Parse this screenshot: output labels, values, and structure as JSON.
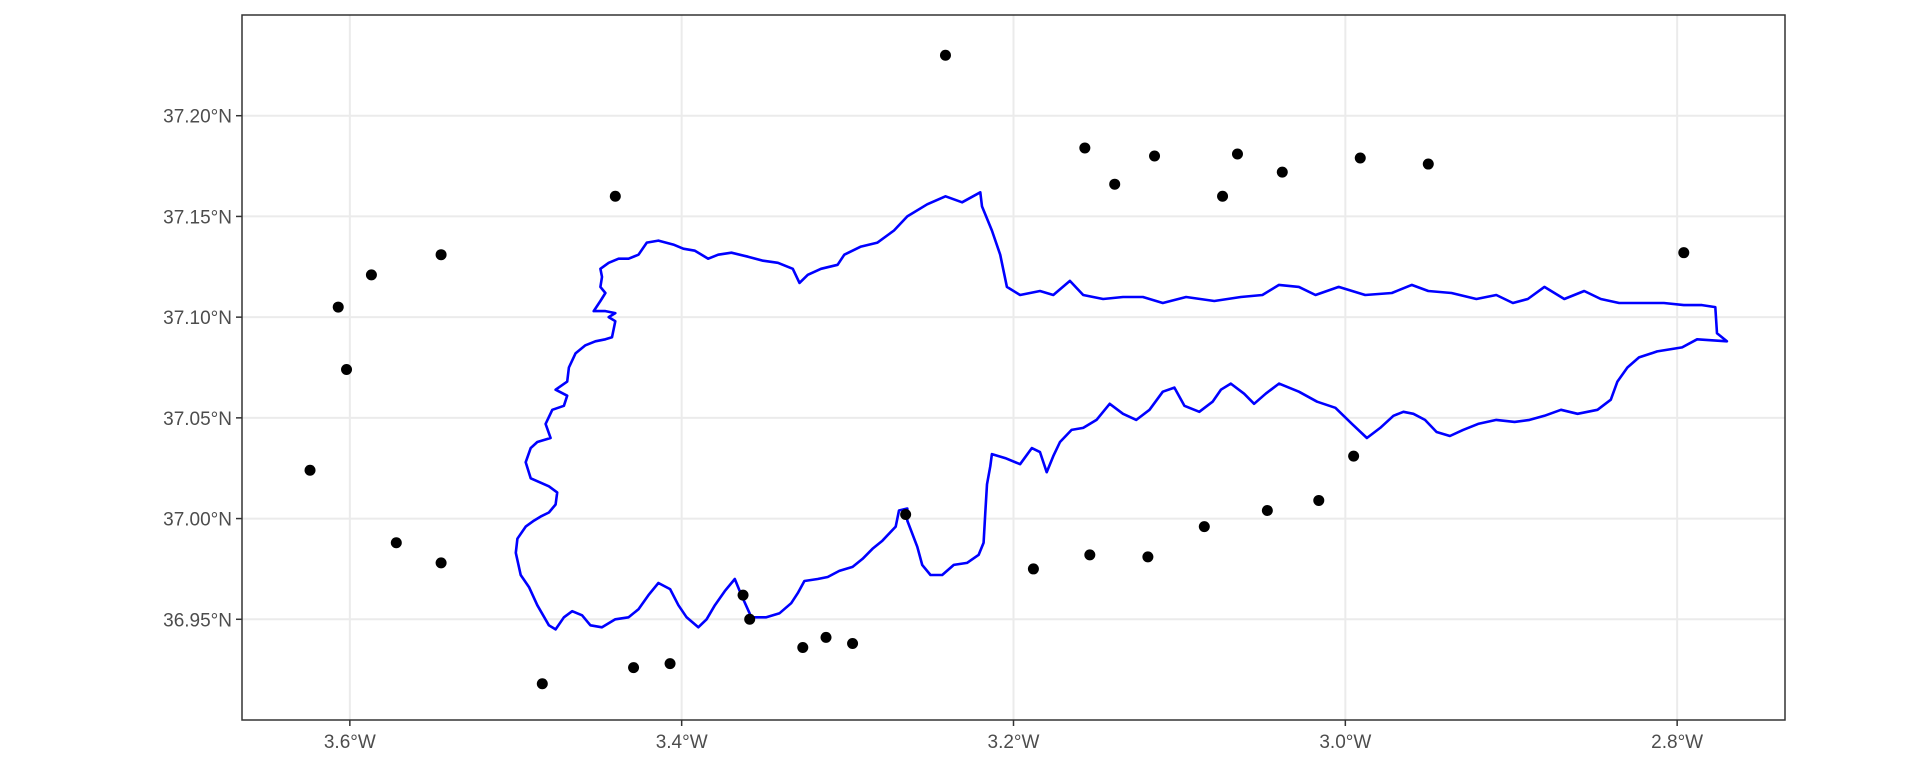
{
  "chart_data": {
    "type": "scatter",
    "title": "",
    "xlabel": "",
    "ylabel": "",
    "xlim": [
      -3.665,
      -2.735
    ],
    "ylim": [
      36.9,
      37.25
    ],
    "x_ticks": [
      {
        "value": -3.6,
        "label": "3.6°W"
      },
      {
        "value": -3.4,
        "label": "3.4°W"
      },
      {
        "value": -3.2,
        "label": "3.2°W"
      },
      {
        "value": -3.0,
        "label": "3.0°W"
      },
      {
        "value": -2.8,
        "label": "2.8°W"
      }
    ],
    "y_ticks": [
      {
        "value": 36.95,
        "label": "36.95°N"
      },
      {
        "value": 37.0,
        "label": "37.00°N"
      },
      {
        "value": 37.05,
        "label": "37.05°N"
      },
      {
        "value": 37.1,
        "label": "37.10°N"
      },
      {
        "value": 37.15,
        "label": "37.15°N"
      },
      {
        "value": 37.2,
        "label": "37.20°N"
      }
    ],
    "grid": true,
    "colors": {
      "polygon": "#0000ff",
      "points": "#000000",
      "grid": "#ebebeb",
      "panel": "#ffffff"
    },
    "points": [
      {
        "x": -3.624,
        "y": 37.024
      },
      {
        "x": -3.607,
        "y": 37.105
      },
      {
        "x": -3.602,
        "y": 37.074
      },
      {
        "x": -3.587,
        "y": 37.121
      },
      {
        "x": -3.572,
        "y": 36.988
      },
      {
        "x": -3.545,
        "y": 37.131
      },
      {
        "x": -3.545,
        "y": 36.978
      },
      {
        "x": -3.484,
        "y": 36.918
      },
      {
        "x": -3.44,
        "y": 37.16
      },
      {
        "x": -3.429,
        "y": 36.926
      },
      {
        "x": -3.407,
        "y": 36.928
      },
      {
        "x": -3.363,
        "y": 36.962
      },
      {
        "x": -3.359,
        "y": 36.95
      },
      {
        "x": -3.327,
        "y": 36.936
      },
      {
        "x": -3.313,
        "y": 36.941
      },
      {
        "x": -3.297,
        "y": 36.938
      },
      {
        "x": -3.265,
        "y": 37.002
      },
      {
        "x": -3.241,
        "y": 37.23
      },
      {
        "x": -3.188,
        "y": 36.975
      },
      {
        "x": -3.157,
        "y": 37.184
      },
      {
        "x": -3.154,
        "y": 36.982
      },
      {
        "x": -3.139,
        "y": 37.166
      },
      {
        "x": -3.119,
        "y": 36.981
      },
      {
        "x": -3.115,
        "y": 37.18
      },
      {
        "x": -3.085,
        "y": 36.996
      },
      {
        "x": -3.074,
        "y": 37.16
      },
      {
        "x": -3.065,
        "y": 37.181
      },
      {
        "x": -3.047,
        "y": 37.004
      },
      {
        "x": -3.038,
        "y": 37.172
      },
      {
        "x": -3.016,
        "y": 37.009
      },
      {
        "x": -2.995,
        "y": 37.031
      },
      {
        "x": -2.991,
        "y": 37.179
      },
      {
        "x": -2.95,
        "y": 37.176
      },
      {
        "x": -2.796,
        "y": 37.132
      }
    ],
    "boundary": [
      [
        -3.426,
        37.131
      ],
      [
        -3.421,
        37.137
      ],
      [
        -3.414,
        37.138
      ],
      [
        -3.405,
        37.136
      ],
      [
        -3.399,
        37.134
      ],
      [
        -3.392,
        37.133
      ],
      [
        -3.384,
        37.129
      ],
      [
        -3.378,
        37.131
      ],
      [
        -3.37,
        37.132
      ],
      [
        -3.36,
        37.13
      ],
      [
        -3.351,
        37.128
      ],
      [
        -3.342,
        37.127
      ],
      [
        -3.333,
        37.124
      ],
      [
        -3.329,
        37.117
      ],
      [
        -3.324,
        37.121
      ],
      [
        -3.316,
        37.124
      ],
      [
        -3.306,
        37.126
      ],
      [
        -3.302,
        37.131
      ],
      [
        -3.292,
        37.135
      ],
      [
        -3.282,
        37.137
      ],
      [
        -3.272,
        37.143
      ],
      [
        -3.264,
        37.15
      ],
      [
        -3.252,
        37.156
      ],
      [
        -3.241,
        37.16
      ],
      [
        -3.231,
        37.157
      ],
      [
        -3.22,
        37.162
      ],
      [
        -3.219,
        37.155
      ],
      [
        -3.213,
        37.143
      ],
      [
        -3.208,
        37.131
      ],
      [
        -3.204,
        37.115
      ],
      [
        -3.196,
        37.111
      ],
      [
        -3.184,
        37.113
      ],
      [
        -3.176,
        37.111
      ],
      [
        -3.166,
        37.118
      ],
      [
        -3.158,
        37.111
      ],
      [
        -3.146,
        37.109
      ],
      [
        -3.134,
        37.11
      ],
      [
        -3.122,
        37.11
      ],
      [
        -3.11,
        37.107
      ],
      [
        -3.096,
        37.11
      ],
      [
        -3.079,
        37.108
      ],
      [
        -3.063,
        37.11
      ],
      [
        -3.05,
        37.111
      ],
      [
        -3.04,
        37.116
      ],
      [
        -3.028,
        37.115
      ],
      [
        -3.018,
        37.111
      ],
      [
        -3.004,
        37.115
      ],
      [
        -2.988,
        37.111
      ],
      [
        -2.972,
        37.112
      ],
      [
        -2.96,
        37.116
      ],
      [
        -2.95,
        37.113
      ],
      [
        -2.936,
        37.112
      ],
      [
        -2.921,
        37.109
      ],
      [
        -2.909,
        37.111
      ],
      [
        -2.899,
        37.107
      ],
      [
        -2.89,
        37.109
      ],
      [
        -2.88,
        37.115
      ],
      [
        -2.868,
        37.109
      ],
      [
        -2.856,
        37.113
      ],
      [
        -2.846,
        37.109
      ],
      [
        -2.835,
        37.107
      ],
      [
        -2.822,
        37.107
      ],
      [
        -2.808,
        37.107
      ],
      [
        -2.796,
        37.106
      ],
      [
        -2.785,
        37.106
      ],
      [
        -2.777,
        37.105
      ],
      [
        -2.776,
        37.092
      ],
      [
        -2.77,
        37.088
      ],
      [
        -2.788,
        37.089
      ],
      [
        -2.797,
        37.085
      ],
      [
        -2.812,
        37.083
      ],
      [
        -2.823,
        37.08
      ],
      [
        -2.83,
        37.075
      ],
      [
        -2.836,
        37.068
      ],
      [
        -2.84,
        37.059
      ],
      [
        -2.848,
        37.054
      ],
      [
        -2.86,
        37.052
      ],
      [
        -2.87,
        37.054
      ],
      [
        -2.88,
        37.051
      ],
      [
        -2.889,
        37.049
      ],
      [
        -2.898,
        37.048
      ],
      [
        -2.909,
        37.049
      ],
      [
        -2.92,
        37.047
      ],
      [
        -2.929,
        37.044
      ],
      [
        -2.937,
        37.041
      ],
      [
        -2.945,
        37.043
      ],
      [
        -2.952,
        37.049
      ],
      [
        -2.959,
        37.052
      ],
      [
        -2.965,
        37.053
      ],
      [
        -2.971,
        37.051
      ],
      [
        -2.979,
        37.045
      ],
      [
        -2.987,
        37.04
      ],
      [
        -2.996,
        37.047
      ],
      [
        -3.006,
        37.055
      ],
      [
        -3.017,
        37.058
      ],
      [
        -3.028,
        37.063
      ],
      [
        -3.04,
        37.067
      ],
      [
        -3.048,
        37.062
      ],
      [
        -3.055,
        37.057
      ],
      [
        -3.061,
        37.062
      ],
      [
        -3.069,
        37.067
      ],
      [
        -3.075,
        37.064
      ],
      [
        -3.08,
        37.058
      ],
      [
        -3.088,
        37.053
      ],
      [
        -3.097,
        37.056
      ],
      [
        -3.103,
        37.065
      ],
      [
        -3.11,
        37.063
      ],
      [
        -3.118,
        37.054
      ],
      [
        -3.126,
        37.049
      ],
      [
        -3.134,
        37.052
      ],
      [
        -3.142,
        37.057
      ],
      [
        -3.15,
        37.049
      ],
      [
        -3.158,
        37.045
      ],
      [
        -3.165,
        37.044
      ],
      [
        -3.172,
        37.038
      ],
      [
        -3.176,
        37.031
      ],
      [
        -3.18,
        37.023
      ],
      [
        -3.184,
        37.033
      ],
      [
        -3.189,
        37.035
      ],
      [
        -3.196,
        37.027
      ],
      [
        -3.205,
        37.03
      ],
      [
        -3.213,
        37.032
      ],
      [
        -3.214,
        37.026
      ],
      [
        -3.216,
        37.017
      ],
      [
        -3.217,
        37.003
      ],
      [
        -3.218,
        36.988
      ],
      [
        -3.221,
        36.982
      ],
      [
        -3.228,
        36.978
      ],
      [
        -3.236,
        36.977
      ],
      [
        -3.243,
        36.972
      ],
      [
        -3.25,
        36.972
      ],
      [
        -3.255,
        36.977
      ],
      [
        -3.258,
        36.986
      ],
      [
        -3.264,
        36.999
      ],
      [
        -3.264,
        37.005
      ],
      [
        -3.269,
        37.004
      ],
      [
        -3.271,
        36.996
      ],
      [
        -3.279,
        36.989
      ],
      [
        -3.285,
        36.985
      ],
      [
        -3.291,
        36.98
      ],
      [
        -3.297,
        36.976
      ],
      [
        -3.305,
        36.974
      ],
      [
        -3.312,
        36.971
      ],
      [
        -3.318,
        36.97
      ],
      [
        -3.326,
        36.969
      ],
      [
        -3.33,
        36.963
      ],
      [
        -3.334,
        36.958
      ],
      [
        -3.341,
        36.953
      ],
      [
        -3.349,
        36.951
      ],
      [
        -3.358,
        36.951
      ],
      [
        -3.364,
        36.962
      ],
      [
        -3.368,
        36.97
      ],
      [
        -3.374,
        36.964
      ],
      [
        -3.38,
        36.957
      ],
      [
        -3.385,
        36.95
      ],
      [
        -3.39,
        36.946
      ],
      [
        -3.397,
        36.951
      ],
      [
        -3.402,
        36.957
      ],
      [
        -3.407,
        36.965
      ],
      [
        -3.414,
        36.968
      ],
      [
        -3.42,
        36.962
      ],
      [
        -3.426,
        36.955
      ],
      [
        -3.432,
        36.951
      ],
      [
        -3.44,
        36.95
      ],
      [
        -3.448,
        36.946
      ],
      [
        -3.455,
        36.947
      ],
      [
        -3.46,
        36.952
      ],
      [
        -3.466,
        36.954
      ],
      [
        -3.471,
        36.951
      ],
      [
        -3.476,
        36.945
      ],
      [
        -3.48,
        36.947
      ],
      [
        -3.487,
        36.957
      ],
      [
        -3.492,
        36.966
      ],
      [
        -3.497,
        36.972
      ],
      [
        -3.5,
        36.983
      ],
      [
        -3.499,
        36.99
      ],
      [
        -3.494,
        36.996
      ],
      [
        -3.489,
        36.999
      ],
      [
        -3.485,
        37.001
      ],
      [
        -3.48,
        37.003
      ],
      [
        -3.476,
        37.007
      ],
      [
        -3.475,
        37.013
      ],
      [
        -3.48,
        37.016
      ],
      [
        -3.491,
        37.02
      ],
      [
        -3.494,
        37.028
      ],
      [
        -3.491,
        37.035
      ],
      [
        -3.487,
        37.038
      ],
      [
        -3.479,
        37.04
      ],
      [
        -3.482,
        37.047
      ],
      [
        -3.478,
        37.054
      ],
      [
        -3.471,
        37.056
      ],
      [
        -3.469,
        37.061
      ],
      [
        -3.476,
        37.064
      ],
      [
        -3.469,
        37.068
      ],
      [
        -3.468,
        37.075
      ],
      [
        -3.464,
        37.082
      ],
      [
        -3.458,
        37.086
      ],
      [
        -3.452,
        37.088
      ],
      [
        -3.446,
        37.089
      ],
      [
        -3.442,
        37.09
      ],
      [
        -3.44,
        37.098
      ],
      [
        -3.444,
        37.1
      ],
      [
        -3.44,
        37.102
      ],
      [
        -3.446,
        37.103
      ],
      [
        -3.453,
        37.103
      ],
      [
        -3.449,
        37.108
      ],
      [
        -3.446,
        37.112
      ],
      [
        -3.449,
        37.115
      ],
      [
        -3.448,
        37.12
      ],
      [
        -3.449,
        37.124
      ],
      [
        -3.444,
        37.127
      ],
      [
        -3.438,
        37.129
      ],
      [
        -3.432,
        37.129
      ],
      [
        -3.426,
        37.131
      ]
    ]
  }
}
